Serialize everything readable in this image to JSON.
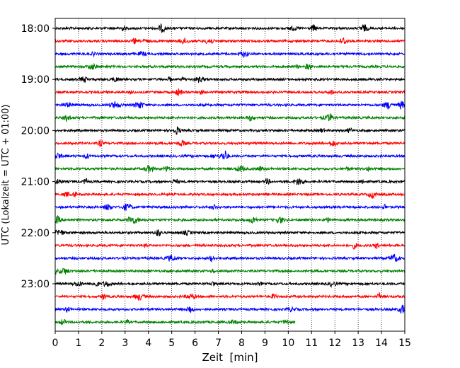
{
  "chart_data": {
    "type": "line",
    "title": "",
    "xlabel": "Zeit  [min]",
    "ylabel": "UTC (Lokalzeit = UTC + 01:00)",
    "xlim": [
      0,
      15
    ],
    "x_ticks": [
      "0",
      "1",
      "2",
      "3",
      "4",
      "5",
      "6",
      "7",
      "8",
      "9",
      "10",
      "11",
      "12",
      "13",
      "14",
      "15"
    ],
    "y_ticks": [
      "18:00",
      "19:00",
      "20:00",
      "21:00",
      "22:00",
      "23:00"
    ],
    "grid": "vertical dotted lines at each minute",
    "trace_colors": [
      "#000000",
      "#ff0000",
      "#0000ff",
      "#008000"
    ],
    "traces": [
      {
        "start": "18:00",
        "color": "#000000",
        "x_end": 15
      },
      {
        "start": "18:15",
        "color": "#ff0000",
        "x_end": 15
      },
      {
        "start": "18:30",
        "color": "#0000ff",
        "x_end": 15
      },
      {
        "start": "18:45",
        "color": "#008000",
        "x_end": 15
      },
      {
        "start": "19:00",
        "color": "#000000",
        "x_end": 15
      },
      {
        "start": "19:15",
        "color": "#ff0000",
        "x_end": 15
      },
      {
        "start": "19:30",
        "color": "#0000ff",
        "x_end": 15
      },
      {
        "start": "19:45",
        "color": "#008000",
        "x_end": 15
      },
      {
        "start": "20:00",
        "color": "#000000",
        "x_end": 15
      },
      {
        "start": "20:15",
        "color": "#ff0000",
        "x_end": 15
      },
      {
        "start": "20:30",
        "color": "#0000ff",
        "x_end": 15
      },
      {
        "start": "20:45",
        "color": "#008000",
        "x_end": 15
      },
      {
        "start": "21:00",
        "color": "#000000",
        "x_end": 15
      },
      {
        "start": "21:15",
        "color": "#ff0000",
        "x_end": 15
      },
      {
        "start": "21:30",
        "color": "#0000ff",
        "x_end": 15
      },
      {
        "start": "21:45",
        "color": "#008000",
        "x_end": 15
      },
      {
        "start": "22:00",
        "color": "#000000",
        "x_end": 15
      },
      {
        "start": "22:15",
        "color": "#ff0000",
        "x_end": 15
      },
      {
        "start": "22:30",
        "color": "#0000ff",
        "x_end": 15
      },
      {
        "start": "22:45",
        "color": "#008000",
        "x_end": 15
      },
      {
        "start": "23:00",
        "color": "#000000",
        "x_end": 15
      },
      {
        "start": "23:15",
        "color": "#ff0000",
        "x_end": 15
      },
      {
        "start": "23:30",
        "color": "#0000ff",
        "x_end": 15
      },
      {
        "start": "23:45",
        "color": "#008000",
        "x_end": 10.3
      }
    ]
  }
}
